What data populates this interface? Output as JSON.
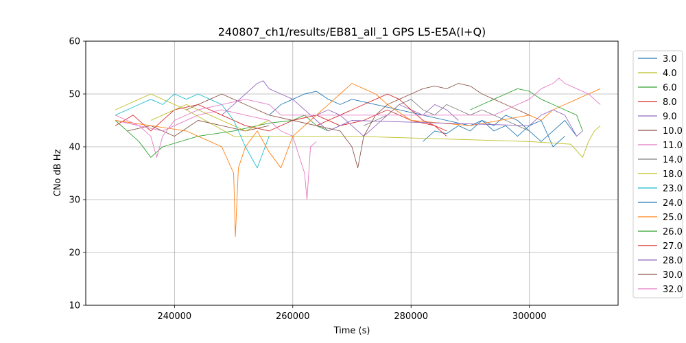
{
  "chart_data": {
    "type": "line",
    "title": "240807_ch1/results/EB81_all_1 GPS L5-E5A(I+Q)",
    "xlabel": "Time (s)",
    "ylabel": "CNo dB Hz",
    "xlim": [
      225000,
      315000
    ],
    "ylim": [
      10,
      60
    ],
    "xticks": [
      240000,
      260000,
      280000,
      300000
    ],
    "yticks": [
      10,
      20,
      30,
      40,
      50,
      60
    ],
    "grid": true,
    "legend": "right-outside",
    "series": [
      {
        "name": "3.0",
        "color": "#1f77b4",
        "points": [
          [
            282000,
            41
          ],
          [
            284000,
            43
          ],
          [
            286000,
            42.5
          ],
          [
            288000,
            44
          ],
          [
            290000,
            43
          ],
          [
            292000,
            45
          ],
          [
            294000,
            44
          ],
          [
            296000,
            46
          ],
          [
            298000,
            45
          ],
          [
            300000,
            43
          ],
          [
            302000,
            41
          ],
          [
            304000,
            43
          ],
          [
            306000,
            45
          ],
          [
            308000,
            42
          ]
        ]
      },
      {
        "name": "4.0",
        "color": "#bcbd22",
        "points": [
          [
            230000,
            47
          ],
          [
            232000,
            48
          ],
          [
            234000,
            49
          ],
          [
            236000,
            50
          ],
          [
            238000,
            49
          ],
          [
            240000,
            48
          ],
          [
            242000,
            47
          ],
          [
            250000,
            42
          ],
          [
            270000,
            42
          ],
          [
            285000,
            41.5
          ],
          [
            300000,
            41
          ],
          [
            307000,
            40.5
          ],
          [
            309000,
            38
          ],
          [
            310000,
            41
          ],
          [
            311000,
            43
          ],
          [
            312000,
            44
          ]
        ]
      },
      {
        "name": "6.0",
        "color": "#2ca02c",
        "points": [
          [
            230000,
            45
          ],
          [
            232000,
            43
          ],
          [
            234000,
            41
          ],
          [
            236000,
            38
          ],
          [
            238000,
            40
          ],
          [
            244000,
            42
          ],
          [
            250000,
            43
          ],
          [
            256000,
            44.5
          ],
          [
            260000,
            45
          ],
          [
            262000,
            46
          ],
          [
            264000,
            44
          ],
          [
            266000,
            43
          ],
          [
            268000,
            44
          ]
        ]
      },
      {
        "name": "8.0",
        "color": "#d62728",
        "points": [
          [
            230000,
            44
          ],
          [
            233000,
            46
          ],
          [
            236000,
            43
          ],
          [
            240000,
            47
          ],
          [
            244000,
            48
          ],
          [
            248000,
            46
          ],
          [
            252000,
            44
          ],
          [
            256000,
            43
          ],
          [
            260000,
            45
          ],
          [
            264000,
            46
          ],
          [
            268000,
            44
          ],
          [
            272000,
            45
          ],
          [
            276000,
            47
          ],
          [
            280000,
            45
          ],
          [
            284000,
            44
          ],
          [
            286000,
            42
          ]
        ]
      },
      {
        "name": "9.0",
        "color": "#9467bd",
        "points": [
          [
            262000,
            44
          ],
          [
            264000,
            46
          ],
          [
            266000,
            47
          ],
          [
            268000,
            46
          ],
          [
            270000,
            44
          ],
          [
            272000,
            42
          ],
          [
            274000,
            44
          ],
          [
            276000,
            46
          ],
          [
            278000,
            48
          ],
          [
            280000,
            47
          ],
          [
            282000,
            46
          ],
          [
            284000,
            48
          ],
          [
            286000,
            47
          ],
          [
            288000,
            45
          ]
        ]
      },
      {
        "name": "10.0",
        "color": "#8c564b",
        "points": [
          [
            232000,
            43
          ],
          [
            236000,
            44
          ],
          [
            240000,
            42
          ],
          [
            244000,
            45
          ],
          [
            248000,
            44
          ],
          [
            252000,
            43
          ],
          [
            256000,
            44
          ]
        ]
      },
      {
        "name": "11.0",
        "color": "#e377c2",
        "points": [
          [
            230000,
            45
          ],
          [
            234000,
            44
          ],
          [
            238000,
            43
          ],
          [
            240000,
            44
          ],
          [
            244000,
            46
          ],
          [
            248000,
            47
          ],
          [
            252000,
            46
          ],
          [
            256000,
            45
          ],
          [
            258000,
            43
          ],
          [
            260000,
            42
          ],
          [
            262000,
            35
          ],
          [
            262400,
            30
          ],
          [
            263000,
            40
          ],
          [
            264000,
            41
          ]
        ]
      },
      {
        "name": "14.0",
        "color": "#7f7f7f",
        "points": [
          [
            272000,
            44
          ],
          [
            274000,
            45
          ],
          [
            276000,
            46
          ],
          [
            278000,
            48
          ],
          [
            280000,
            49
          ],
          [
            282000,
            47
          ],
          [
            284000,
            46
          ],
          [
            286000,
            48
          ],
          [
            288000,
            47
          ],
          [
            290000,
            46
          ],
          [
            292000,
            47
          ],
          [
            294000,
            46
          ],
          [
            296000,
            45
          ],
          [
            298000,
            44
          ],
          [
            300000,
            43
          ]
        ]
      },
      {
        "name": "18.0",
        "color": "#bcbd22",
        "points": [
          [
            236000,
            45
          ],
          [
            238000,
            46
          ],
          [
            240000,
            47
          ],
          [
            242000,
            48
          ],
          [
            244000,
            47
          ],
          [
            246000,
            46
          ],
          [
            248000,
            45
          ],
          [
            250000,
            44
          ],
          [
            252000,
            43
          ],
          [
            254000,
            44
          ],
          [
            256000,
            45
          ]
        ]
      },
      {
        "name": "23.0",
        "color": "#17becf",
        "points": [
          [
            230000,
            46
          ],
          [
            232000,
            47
          ],
          [
            234000,
            48
          ],
          [
            236000,
            49
          ],
          [
            238000,
            48
          ],
          [
            240000,
            50
          ],
          [
            242000,
            49
          ],
          [
            244000,
            50
          ],
          [
            246000,
            49
          ],
          [
            248000,
            48
          ],
          [
            250000,
            45
          ],
          [
            252000,
            40
          ],
          [
            254000,
            36
          ],
          [
            256000,
            42
          ]
        ]
      },
      {
        "name": "24.0",
        "color": "#1f77b4",
        "points": [
          [
            256000,
            46
          ],
          [
            258000,
            48
          ],
          [
            260000,
            49
          ],
          [
            262000,
            50
          ],
          [
            264000,
            50.5
          ],
          [
            266000,
            49
          ],
          [
            268000,
            48
          ],
          [
            270000,
            49
          ],
          [
            290000,
            44
          ],
          [
            292000,
            45
          ],
          [
            294000,
            43
          ],
          [
            296000,
            44
          ],
          [
            298000,
            42
          ],
          [
            300000,
            44
          ],
          [
            302000,
            45
          ],
          [
            304000,
            40
          ],
          [
            306000,
            42
          ]
        ]
      },
      {
        "name": "25.0",
        "color": "#ff7f0e",
        "points": [
          [
            230000,
            45
          ],
          [
            236000,
            44
          ],
          [
            242000,
            43
          ],
          [
            246000,
            41
          ],
          [
            248000,
            40
          ],
          [
            250000,
            35
          ],
          [
            250300,
            23
          ],
          [
            250800,
            36
          ],
          [
            252000,
            40
          ],
          [
            254000,
            43
          ],
          [
            256000,
            39
          ],
          [
            258000,
            36
          ],
          [
            260000,
            42
          ],
          [
            262000,
            44
          ],
          [
            264000,
            46
          ],
          [
            266000,
            48
          ],
          [
            268000,
            50
          ],
          [
            270000,
            52
          ],
          [
            272000,
            51
          ],
          [
            274000,
            50
          ],
          [
            276000,
            48
          ],
          [
            280000,
            45
          ],
          [
            290000,
            44
          ],
          [
            300000,
            46
          ],
          [
            302000,
            45
          ],
          [
            304000,
            47
          ],
          [
            306000,
            48
          ],
          [
            308000,
            49
          ],
          [
            310000,
            50
          ],
          [
            312000,
            51
          ]
        ]
      },
      {
        "name": "26.0",
        "color": "#2ca02c",
        "points": [
          [
            290000,
            47
          ],
          [
            292000,
            48
          ],
          [
            294000,
            49
          ],
          [
            296000,
            50
          ],
          [
            298000,
            51
          ],
          [
            300000,
            50.5
          ],
          [
            302000,
            49
          ],
          [
            304000,
            48
          ],
          [
            306000,
            47
          ],
          [
            308000,
            46
          ],
          [
            309000,
            43
          ]
        ]
      },
      {
        "name": "27.0",
        "color": "#d62728",
        "points": [
          [
            264000,
            44
          ],
          [
            266000,
            45
          ],
          [
            268000,
            46
          ],
          [
            270000,
            47
          ],
          [
            272000,
            48
          ],
          [
            274000,
            49
          ],
          [
            276000,
            50
          ],
          [
            278000,
            49
          ],
          [
            280000,
            47
          ],
          [
            282000,
            45
          ],
          [
            284000,
            44
          ],
          [
            286000,
            43
          ]
        ]
      },
      {
        "name": "28.0",
        "color": "#9467bd",
        "points": [
          [
            248000,
            46
          ],
          [
            250000,
            48
          ],
          [
            252000,
            50
          ],
          [
            254000,
            52
          ],
          [
            255000,
            52.5
          ],
          [
            256000,
            51
          ],
          [
            258000,
            50
          ],
          [
            260000,
            49
          ],
          [
            262000,
            47
          ],
          [
            264000,
            45
          ],
          [
            266000,
            43
          ],
          [
            268000,
            44
          ],
          [
            270000,
            45
          ],
          [
            300000,
            44
          ],
          [
            302000,
            46
          ],
          [
            304000,
            47
          ],
          [
            306000,
            46
          ],
          [
            307000,
            44
          ],
          [
            308000,
            42
          ],
          [
            309000,
            43
          ]
        ]
      },
      {
        "name": "30.0",
        "color": "#8c564b",
        "points": [
          [
            242000,
            47
          ],
          [
            244000,
            48
          ],
          [
            246000,
            49
          ],
          [
            248000,
            50
          ],
          [
            250000,
            49
          ],
          [
            252000,
            48
          ],
          [
            256000,
            46
          ],
          [
            260000,
            45
          ],
          [
            264000,
            44
          ],
          [
            268000,
            43
          ],
          [
            270000,
            40
          ],
          [
            271000,
            36
          ],
          [
            272000,
            42
          ],
          [
            274000,
            46
          ],
          [
            276000,
            48
          ],
          [
            278000,
            49
          ],
          [
            280000,
            50
          ],
          [
            282000,
            51
          ],
          [
            284000,
            51.5
          ],
          [
            286000,
            51
          ],
          [
            288000,
            52
          ],
          [
            290000,
            51.5
          ],
          [
            292000,
            50
          ],
          [
            294000,
            49
          ],
          [
            296000,
            48
          ],
          [
            298000,
            47
          ],
          [
            300000,
            46
          ]
        ]
      },
      {
        "name": "32.0",
        "color": "#e377c2",
        "points": [
          [
            230000,
            46
          ],
          [
            232000,
            45
          ],
          [
            234000,
            44
          ],
          [
            236000,
            42
          ],
          [
            237000,
            38
          ],
          [
            238000,
            42
          ],
          [
            240000,
            45
          ],
          [
            244000,
            47
          ],
          [
            248000,
            48
          ],
          [
            252000,
            49
          ],
          [
            256000,
            48
          ],
          [
            258000,
            46
          ],
          [
            294000,
            46
          ],
          [
            296000,
            47
          ],
          [
            298000,
            48
          ],
          [
            300000,
            49
          ],
          [
            302000,
            51
          ],
          [
            304000,
            52
          ],
          [
            305000,
            53
          ],
          [
            306000,
            52
          ],
          [
            308000,
            51
          ],
          [
            310000,
            50
          ],
          [
            312000,
            48
          ]
        ]
      }
    ]
  }
}
